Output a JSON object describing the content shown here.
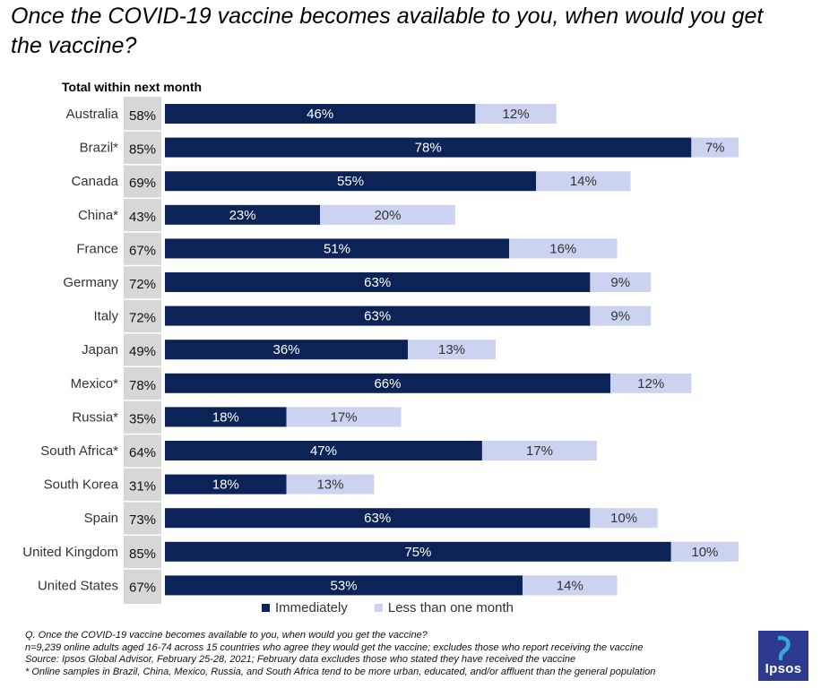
{
  "title": "Once the COVID-19 vaccine becomes available to you, when would you get the vaccine?",
  "subtitle": "Total within next month",
  "colors": {
    "immediately": "#0b2356",
    "less_than_month": "#ccd3f0",
    "total_box": "#d7d7d7"
  },
  "legend": {
    "immediately": "Immediately",
    "less_than_month": "Less than one month"
  },
  "chart_data": {
    "type": "bar",
    "orientation": "horizontal",
    "stacked": true,
    "categories": [
      "Australia",
      "Brazil*",
      "Canada",
      "China*",
      "France",
      "Germany",
      "Italy",
      "Japan",
      "Mexico*",
      "Russia*",
      "South Africa*",
      "South Korea",
      "Spain",
      "United Kingdom",
      "United States"
    ],
    "series": [
      {
        "name": "Immediately",
        "values": [
          46,
          78,
          55,
          23,
          51,
          63,
          63,
          36,
          66,
          18,
          47,
          18,
          63,
          75,
          53
        ]
      },
      {
        "name": "Less than one month",
        "values": [
          12,
          7,
          14,
          20,
          16,
          9,
          9,
          13,
          12,
          17,
          17,
          13,
          10,
          10,
          14
        ]
      }
    ],
    "totals_label": "Total within next month",
    "totals": [
      58,
      85,
      69,
      43,
      67,
      72,
      72,
      49,
      78,
      35,
      64,
      31,
      73,
      85,
      67
    ],
    "value_suffix": "%",
    "xlim": [
      0,
      100
    ],
    "grid": false,
    "legend_position": "bottom"
  },
  "footnotes": [
    "Q. Once the COVID-19 vaccine becomes available to you, when would you get the vaccine?",
    "n=9,239 online adults aged 16-74 across 15 countries who agree they would get the vaccine; excludes those who report receiving the vaccine",
    "Source: Ipsos Global Advisor, February 25-28, 2021; February data excludes those who stated they have received the vaccine",
    "* Online samples in Brazil, China, Mexico, Russia, and South Africa tend to be more urban, educated, and/or affluent than the general population"
  ],
  "logo": {
    "text": "Ipsos"
  }
}
